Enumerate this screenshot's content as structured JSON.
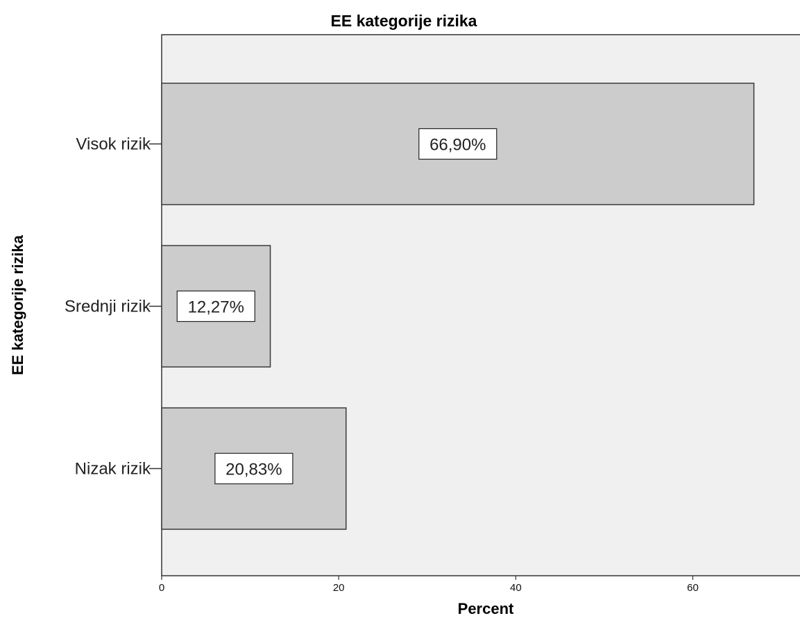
{
  "chart_data": {
    "type": "bar",
    "orientation": "horizontal",
    "title": "EE kategorije rizika",
    "xlabel": "Percent",
    "ylabel": "EE kategorije rizika",
    "categories": [
      "Visok rizik",
      "Srednji rizik",
      "Nizak rizik"
    ],
    "values": [
      66.9,
      12.27,
      20.83
    ],
    "data_labels": [
      "66,90%",
      "12,27%",
      "20,83%"
    ],
    "xlim": [
      0,
      72.5
    ],
    "xticks": [
      0,
      20,
      40,
      60
    ],
    "xtick_labels": [
      "0",
      "20",
      "40",
      "60"
    ],
    "grid": false,
    "colors": {
      "plot_background": "#f0f0f0",
      "bar_fill": "#cccccc",
      "bar_stroke": "#3a3a3a",
      "axis": "#333333",
      "label_box": "#ffffff"
    }
  }
}
